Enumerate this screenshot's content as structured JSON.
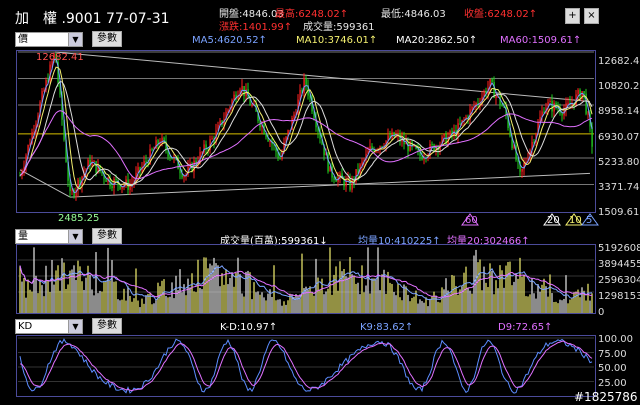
{
  "header": {
    "title": "加　權 .9001 77-07-31",
    "open_label": "開盤:4846.03",
    "high_label": "最高:6248.02↑",
    "low_label": "最低:4846.03",
    "close_label": "收盤:6248.02↑",
    "change_label": "漲跌:1401.99↑",
    "volume_label": "成交量:599361",
    "plus_btn": "+",
    "close_btn": "×",
    "colors": {
      "up": "#ff3030",
      "text": "#e8e8e8"
    }
  },
  "main_panel": {
    "period_select": "價",
    "params_btn": "參數",
    "ma5": "MA5:4620.52↑",
    "ma10": "MA10:3746.01↑",
    "ma20": "MA20:2862.50↑",
    "ma60": "MA60:1509.61↑",
    "ma_colors": {
      "ma5": "#7aa2ff",
      "ma10": "#f4f070",
      "ma20": "#ffffff",
      "ma60": "#e070ff"
    },
    "y_ticks": [
      "12682.41",
      "10820.20",
      "8958.14",
      "6930.07",
      "5233.80",
      "3371.74",
      "1509.61"
    ],
    "peak_label": "12682.41",
    "trough_label": "2485.25",
    "markers": [
      "60",
      "20",
      "10",
      "5"
    ]
  },
  "volume_panel": {
    "select": "量",
    "params_btn": "參數",
    "vol_label": "成交量(百萬):599361↓",
    "avg10": "均量10:410225↑",
    "avg20": "均量20:302466↑",
    "y_ticks": [
      "5192608",
      "3894455",
      "2596304",
      "1298153",
      "0"
    ]
  },
  "kd_panel": {
    "select": "KD",
    "params_btn": "參數",
    "kd_label": "K-D:10.97↑",
    "k_label": "K9:83.62↑",
    "d_label": "D9:72.65↑",
    "y_ticks": [
      "100.00",
      "75.00",
      "50.00",
      "25.00"
    ]
  },
  "watermark": "#1825786",
  "chart_data": [
    {
      "type": "candlestick",
      "title": "加　權 .9001 77-07-31",
      "y_ticks": [
        12682.41,
        10820.2,
        8958.14,
        6930.07,
        5233.8,
        3371.74,
        1509.61
      ],
      "ylim": [
        1509.61,
        12682.41
      ],
      "peak": 12682.41,
      "trough": 2485.25,
      "last_close": 6248.02,
      "ma": {
        "MA5": 4620.52,
        "MA10": 3746.01,
        "MA20": 2862.5,
        "MA60": 1509.61
      },
      "grid": true
    },
    {
      "type": "bar",
      "title": "成交量(百萬):599361",
      "y_ticks": [
        5192608,
        3894455,
        2596304,
        1298153,
        0
      ],
      "ylim": [
        0,
        5192608
      ],
      "avg10": 410225,
      "avg20": 302466
    },
    {
      "type": "line",
      "title": "KD",
      "y_ticks": [
        100.0,
        75.0,
        50.0,
        25.0
      ],
      "ylim": [
        0,
        100
      ],
      "K9": 83.62,
      "D9": 72.65,
      "K_minus_D": 10.97
    }
  ]
}
